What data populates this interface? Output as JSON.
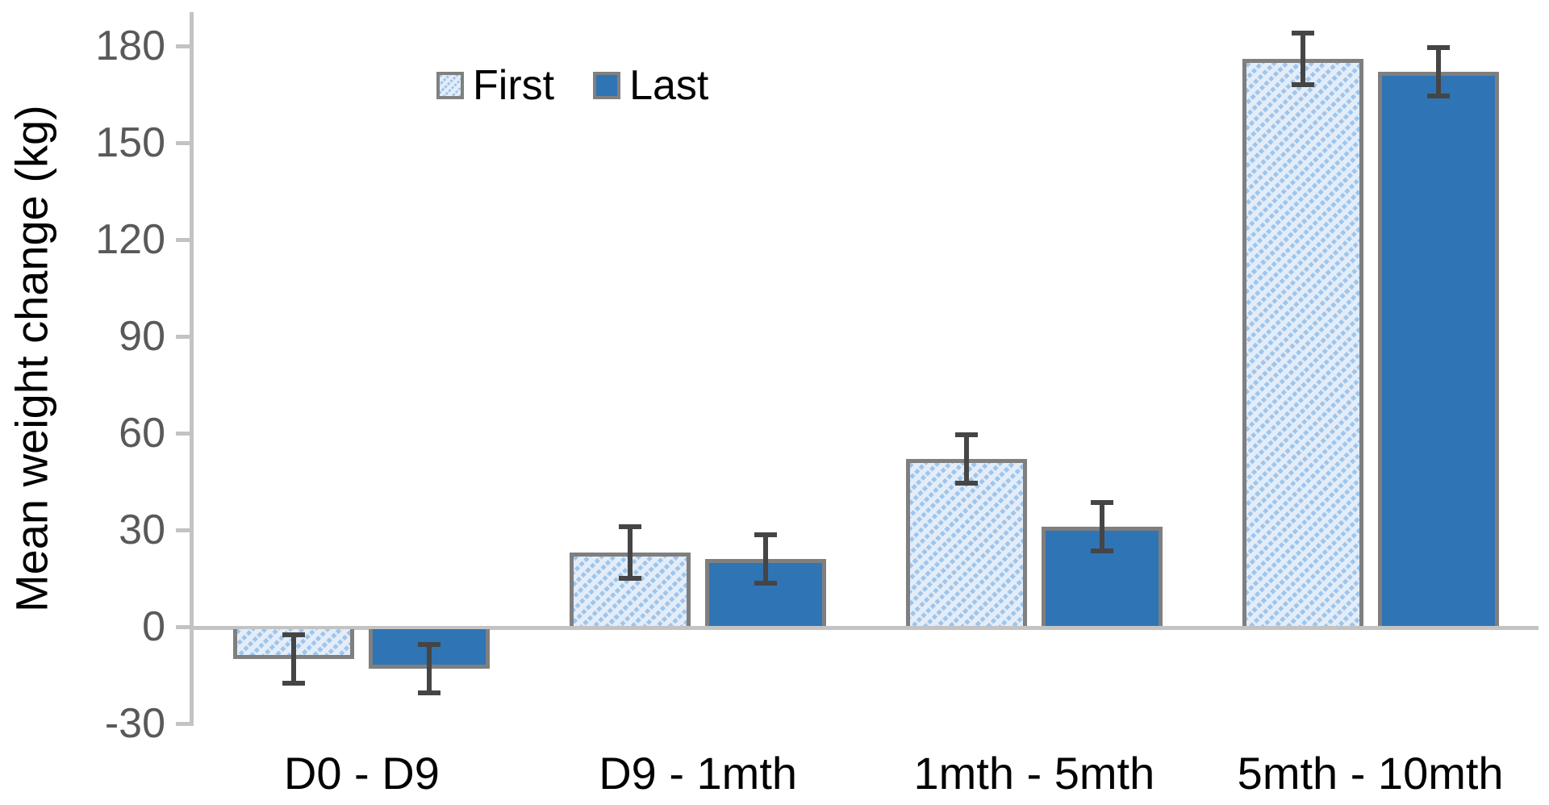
{
  "chart_data": {
    "type": "bar",
    "title": "",
    "ylabel": "Mean weight change (kg)",
    "xlabel": "",
    "categories": [
      "D0 - D9",
      "D9 - 1mth",
      "1mth - 5mth",
      "5mth - 10mth"
    ],
    "series": [
      {
        "name": "First",
        "style": "hatched",
        "values": [
          -10,
          23,
          52,
          176
        ],
        "errors": [
          7.5,
          8,
          7.5,
          8
        ]
      },
      {
        "name": "Last",
        "style": "solid",
        "values": [
          -13,
          21,
          31,
          172
        ],
        "errors": [
          7.5,
          7.5,
          7.5,
          7.5
        ]
      }
    ],
    "y_ticks": [
      180,
      150,
      120,
      90,
      60,
      30,
      0,
      -30
    ],
    "ylim": [
      -30,
      190
    ],
    "grid": false,
    "error_bars": true,
    "legend_position": "top-center",
    "colors": {
      "solid_fill": "#2F74B5",
      "hatch_bg": "#E3EDF9",
      "hatch_stripe": "#9FC5EA",
      "bar_border": "#7F7F7F",
      "error_bar": "#454545",
      "axis_line": "#C3C3C3",
      "y_tick_text": "#595959",
      "category_text": "#000000",
      "legend_text": "#000000"
    }
  }
}
